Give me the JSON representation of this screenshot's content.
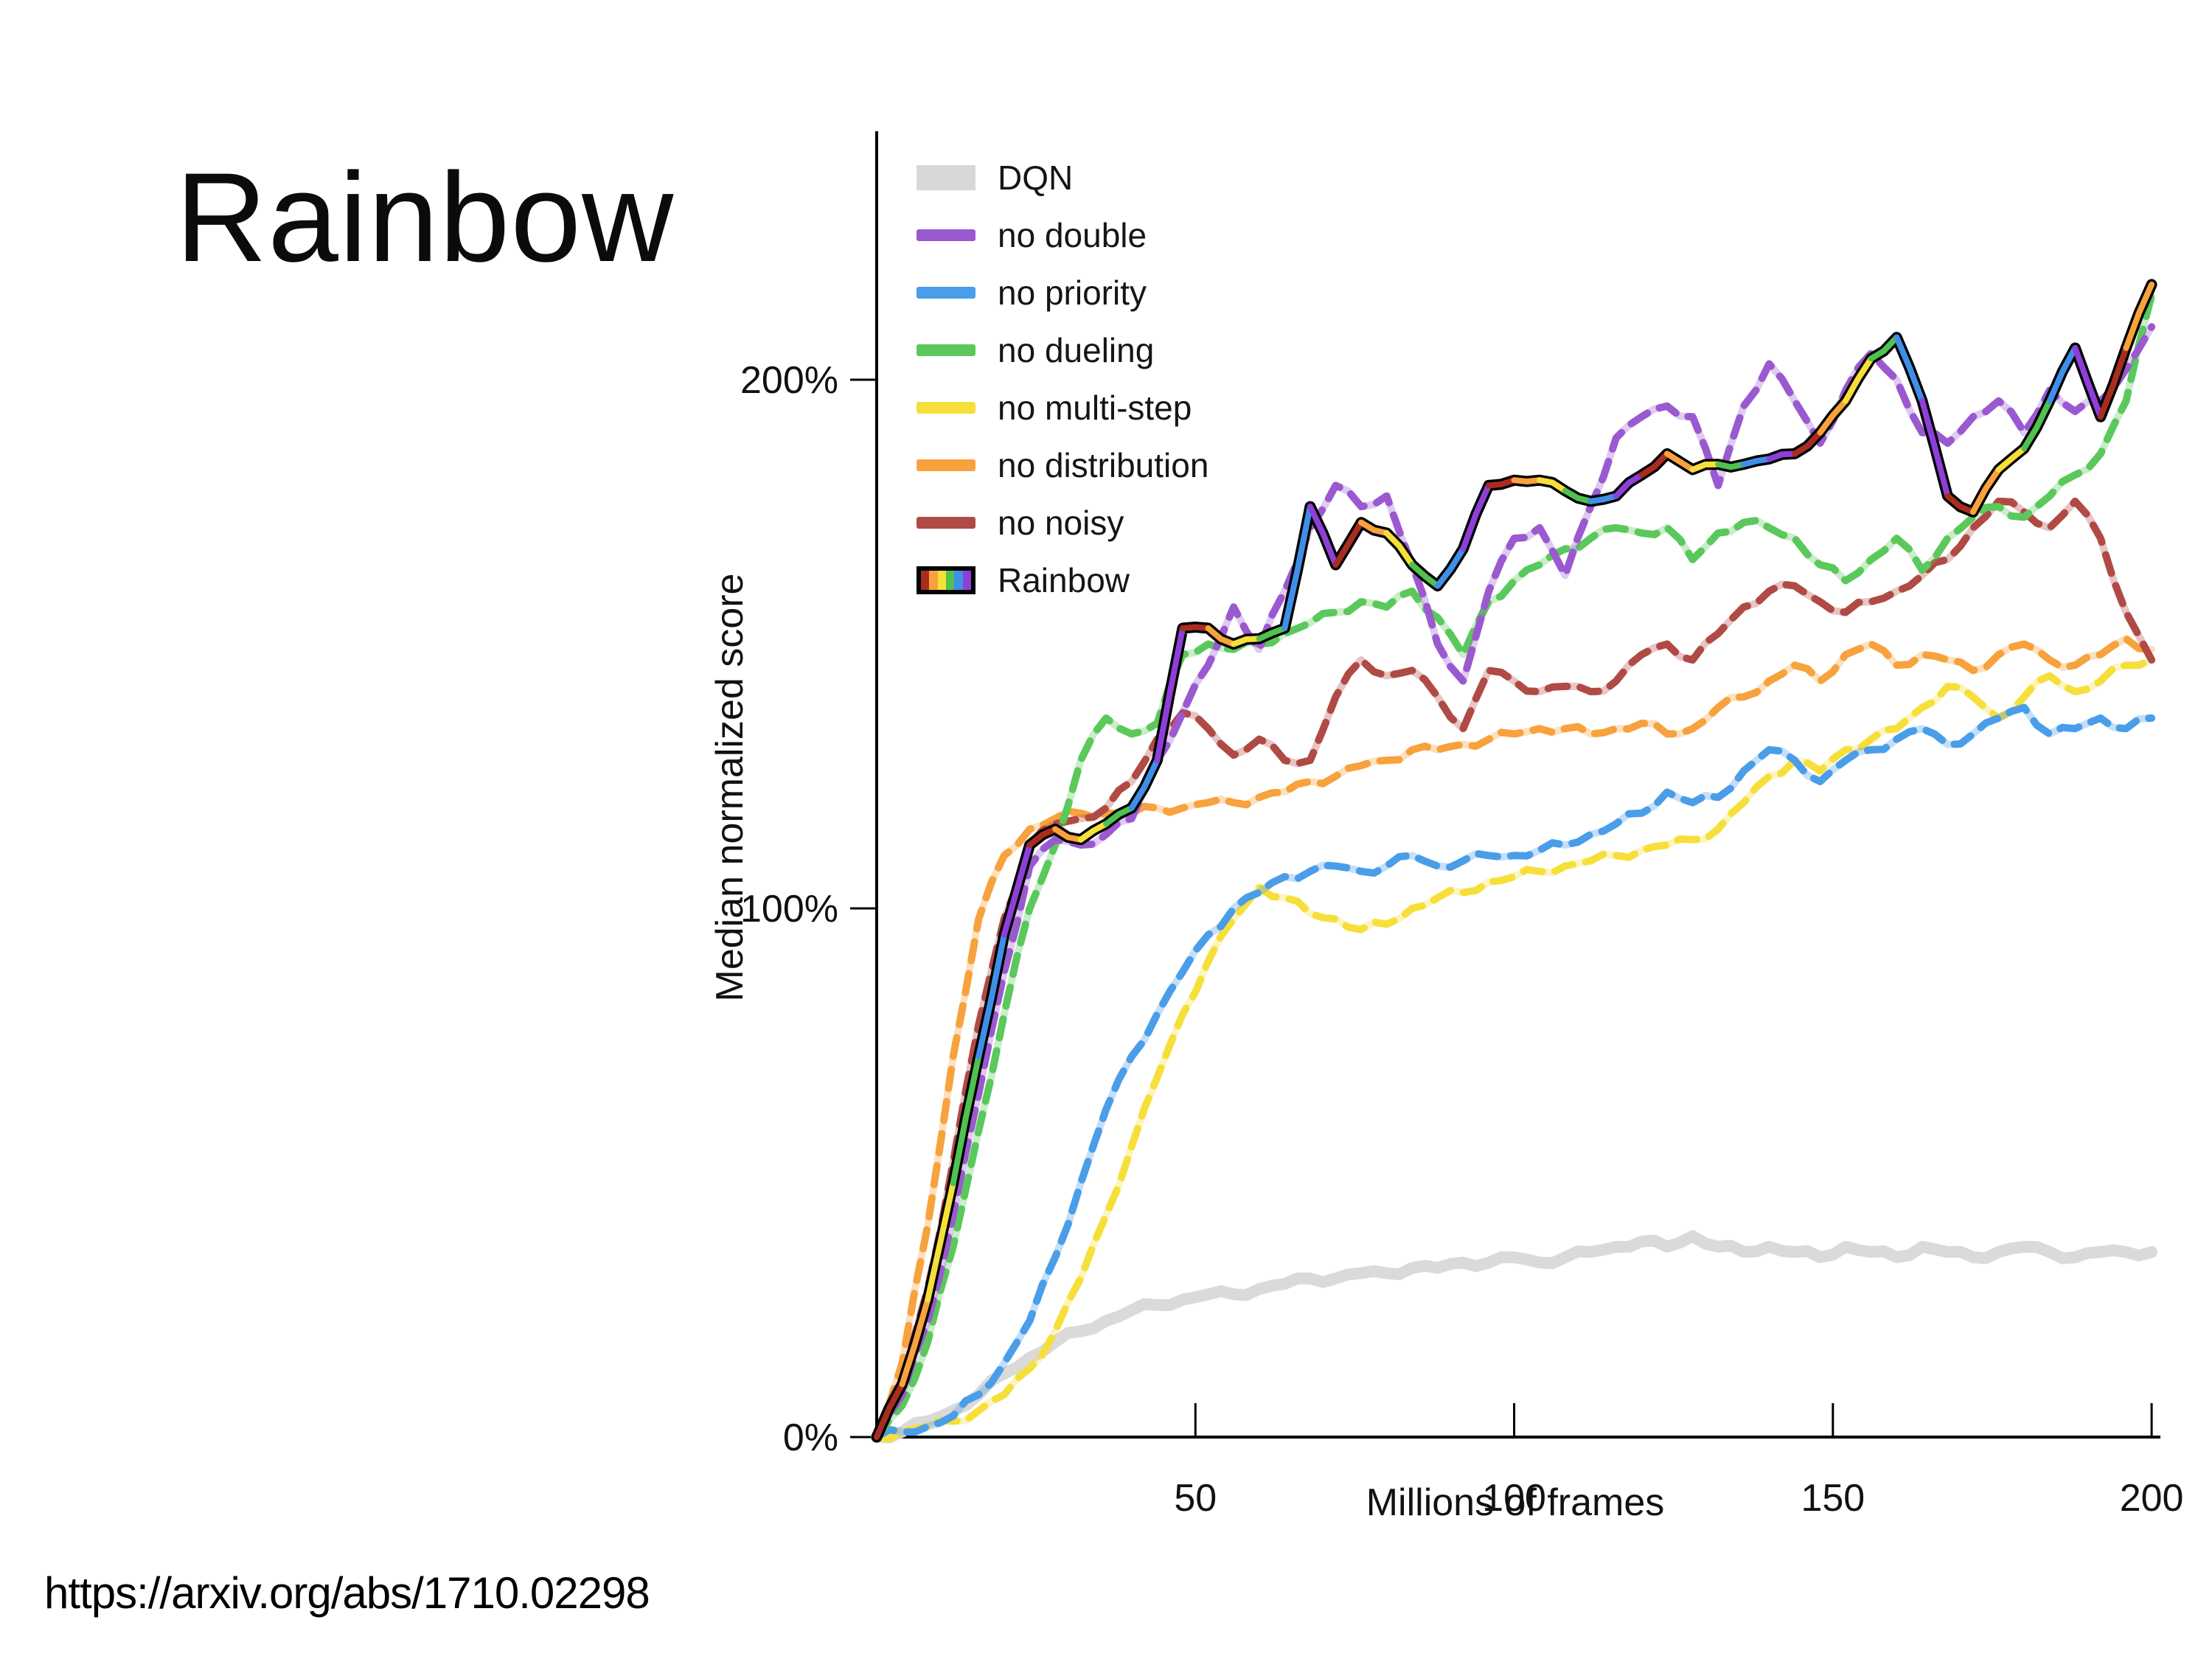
{
  "slide": {
    "title": "Rainbow",
    "source_url": "https://arxiv.org/abs/1710.02298"
  },
  "legend": {
    "position": "upper-left",
    "items": [
      {
        "label": "DQN",
        "color": "#d8d8d8",
        "swatch": "patch"
      },
      {
        "label": "no double",
        "color": "#9b59d0",
        "swatch": "line"
      },
      {
        "label": "no priority",
        "color": "#4a9de8",
        "swatch": "line"
      },
      {
        "label": "no dueling",
        "color": "#5bc85b",
        "swatch": "line"
      },
      {
        "label": "no multi-step",
        "color": "#f7df3b",
        "swatch": "line"
      },
      {
        "label": "no distribution",
        "color": "#f7a23c",
        "swatch": "line"
      },
      {
        "label": "no noisy",
        "color": "#b04a45",
        "swatch": "line"
      },
      {
        "label": "Rainbow",
        "color": "#000000",
        "swatch": "rainbow",
        "colors": [
          "#a92c21",
          "#f7a23c",
          "#f7df3b",
          "#4fc14f",
          "#3f8fe8",
          "#8d3fd8"
        ]
      }
    ]
  },
  "axes": {
    "x_label": "Millions of frames",
    "y_label": "Median normalized score",
    "x_ticks": [
      50,
      100,
      150,
      200
    ],
    "y_ticks": [
      "0%",
      "100%",
      "200%"
    ],
    "y_tick_values": [
      0,
      100,
      200
    ],
    "x_range": [
      0,
      200
    ],
    "y_range_percent": [
      0,
      247
    ],
    "grid": false
  },
  "chart_data": {
    "type": "line",
    "title": "",
    "xlabel": "Millions of frames",
    "ylabel": "Median normalized score",
    "xlim": [
      0,
      200
    ],
    "ylim_percent": [
      0,
      247
    ],
    "legend_position": "upper left",
    "x": [
      0,
      4,
      8,
      12,
      16,
      20,
      24,
      28,
      32,
      36,
      40,
      44,
      48,
      52,
      56,
      60,
      64,
      68,
      72,
      76,
      80,
      84,
      88,
      92,
      96,
      100,
      104,
      108,
      112,
      116,
      120,
      124,
      128,
      132,
      136,
      140,
      144,
      148,
      152,
      156,
      160,
      164,
      168,
      172,
      176,
      180,
      184,
      188,
      192,
      196,
      200
    ],
    "series": [
      {
        "name": "DQN",
        "color": "#d8d8d8",
        "style": "solid-thick",
        "values": [
          0,
          1,
          3,
          5,
          8,
          12,
          15,
          18,
          20,
          22,
          24,
          25,
          26,
          27,
          27,
          28,
          29,
          30,
          30,
          31,
          31,
          32,
          32,
          33,
          33,
          34,
          33,
          34,
          35,
          36,
          37,
          36,
          38,
          36,
          35,
          36,
          35,
          34,
          36,
          35,
          34,
          36,
          35,
          34,
          35,
          36,
          35,
          34,
          35,
          35,
          35
        ]
      },
      {
        "name": "no double",
        "color": "#9b59d0",
        "style": "dashed",
        "values": [
          0,
          8,
          22,
          42,
          65,
          88,
          108,
          113,
          112,
          114,
          117,
          128,
          137,
          146,
          157,
          149,
          160,
          172,
          180,
          176,
          178,
          165,
          150,
          143,
          160,
          170,
          172,
          163,
          176,
          189,
          193,
          195,
          193,
          180,
          195,
          203,
          196,
          188,
          198,
          205,
          200,
          190,
          188,
          193,
          196,
          190,
          198,
          194,
          196,
          202,
          210
        ]
      },
      {
        "name": "no priority",
        "color": "#4a9de8",
        "style": "dashed",
        "values": [
          0,
          1,
          2,
          4,
          8,
          14,
          22,
          34,
          48,
          62,
          72,
          80,
          88,
          95,
          100,
          103,
          106,
          107,
          108,
          107,
          108,
          110,
          108,
          109,
          110,
          110,
          111,
          112,
          114,
          116,
          118,
          122,
          120,
          121,
          126,
          130,
          128,
          124,
          128,
          130,
          132,
          134,
          131,
          133,
          136,
          138,
          133,
          134,
          136,
          134,
          136
        ]
      },
      {
        "name": "no dueling",
        "color": "#5bc85b",
        "style": "dashed",
        "values": [
          0,
          6,
          18,
          36,
          58,
          80,
          100,
          112,
          128,
          136,
          133,
          135,
          148,
          150,
          149,
          150,
          152,
          154,
          156,
          158,
          157,
          160,
          155,
          148,
          158,
          162,
          165,
          168,
          170,
          172,
          171,
          172,
          166,
          171,
          173,
          172,
          170,
          165,
          162,
          166,
          170,
          164,
          170,
          174,
          176,
          174,
          178,
          182,
          186,
          196,
          216
        ]
      },
      {
        "name": "no multi-step",
        "color": "#f7df3b",
        "style": "dashed",
        "values": [
          0,
          1,
          2,
          3,
          5,
          8,
          13,
          20,
          30,
          42,
          55,
          68,
          80,
          90,
          98,
          104,
          102,
          99,
          98,
          96,
          97,
          100,
          102,
          103,
          105,
          106,
          107,
          108,
          109,
          110,
          111,
          112,
          113,
          115,
          120,
          125,
          128,
          126,
          130,
          132,
          134,
          138,
          142,
          140,
          136,
          140,
          144,
          141,
          143,
          146,
          147
        ]
      },
      {
        "name": "no distribution",
        "color": "#f7a23c",
        "style": "dashed",
        "values": [
          0,
          14,
          40,
          72,
          98,
          110,
          115,
          117,
          118,
          118,
          118,
          119,
          119,
          120,
          120,
          121,
          122,
          124,
          125,
          127,
          128,
          130,
          130,
          131,
          132,
          133,
          134,
          134,
          133,
          134,
          135,
          133,
          134,
          138,
          140,
          143,
          146,
          143,
          148,
          150,
          146,
          148,
          147,
          145,
          148,
          150,
          147,
          146,
          148,
          151,
          149
        ]
      },
      {
        "name": "no noisy",
        "color": "#b04a45",
        "style": "dashed",
        "values": [
          0,
          10,
          28,
          52,
          78,
          98,
          112,
          116,
          117,
          119,
          124,
          132,
          137,
          134,
          129,
          132,
          128,
          128,
          140,
          147,
          144,
          145,
          140,
          134,
          145,
          143,
          141,
          142,
          141,
          143,
          148,
          150,
          147,
          152,
          157,
          160,
          161,
          158,
          156,
          158,
          160,
          163,
          166,
          172,
          177,
          175,
          172,
          177,
          170,
          156,
          147
        ]
      },
      {
        "name": "Rainbow",
        "color": "#000000",
        "style": "rainbow",
        "color_cycle": [
          "#a92c21",
          "#f7a23c",
          "#f7df3b",
          "#4fc14f",
          "#3f8fe8",
          "#8d3fd8"
        ],
        "values": [
          0,
          10,
          26,
          48,
          72,
          95,
          112,
          115,
          113,
          116,
          119,
          128,
          153,
          153,
          150,
          151,
          153,
          176,
          165,
          173,
          171,
          165,
          161,
          168,
          180,
          181,
          181,
          179,
          177,
          178,
          182,
          186,
          183,
          184,
          184,
          185,
          186,
          190,
          196,
          204,
          208,
          196,
          178,
          175,
          183,
          187,
          196,
          206,
          193,
          206,
          218
        ]
      }
    ]
  }
}
